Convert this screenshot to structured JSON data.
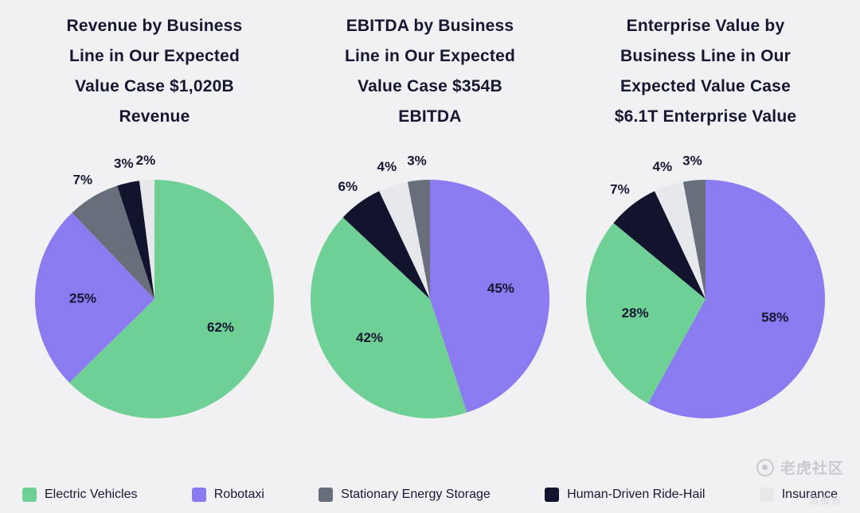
{
  "page": {
    "background": "#f1f1f4",
    "text_color": "#161731"
  },
  "colors": {
    "electric_vehicles": "#6fd096",
    "robotaxi": "#8a7bf0",
    "stationary_energy_storage": "#696e7b",
    "human_driven_ride_hail": "#12142e",
    "insurance": "#e7e8eb"
  },
  "chart_data": [
    {
      "type": "pie",
      "title": "Revenue by Business Line in Our Expected Value Case $1,020B Revenue",
      "title_lines": [
        "Revenue by Business",
        "Line in Our Expected",
        "Value Case $1,020B",
        "Revenue"
      ],
      "total_label": "$1,020B Revenue",
      "label_unit": "%",
      "slices": [
        {
          "label": "Electric Vehicles",
          "value": 62,
          "color": "#6fd096"
        },
        {
          "label": "Robotaxi",
          "value": 25,
          "color": "#8a7bf0"
        },
        {
          "label": "Stationary Energy Storage",
          "value": 7,
          "color": "#696e7b"
        },
        {
          "label": "Human-Driven Ride-Hail",
          "value": 3,
          "color": "#12142e"
        },
        {
          "label": "Insurance",
          "value": 2,
          "color": "#e7e8eb"
        }
      ]
    },
    {
      "type": "pie",
      "title": "EBITDA by Business Line in Our Expected Value Case $354B EBITDA",
      "title_lines": [
        "EBITDA by Business",
        "Line in Our Expected",
        "Value Case $354B",
        "EBITDA"
      ],
      "total_label": "$354B EBITDA",
      "label_unit": "%",
      "slices": [
        {
          "label": "Robotaxi",
          "value": 45,
          "color": "#8a7bf0"
        },
        {
          "label": "Electric Vehicles",
          "value": 42,
          "color": "#6fd096"
        },
        {
          "label": "Human-Driven Ride-Hail",
          "value": 6,
          "color": "#12142e"
        },
        {
          "label": "Insurance",
          "value": 4,
          "color": "#e7e8eb"
        },
        {
          "label": "Stationary Energy Storage",
          "value": 3,
          "color": "#696e7b"
        }
      ]
    },
    {
      "type": "pie",
      "title": "Enterprise Value by Business Line in Our Expected Value Case $6.1T Enterprise Value",
      "title_lines": [
        "Enterprise Value by",
        "Business Line in Our",
        "Expected Value Case",
        "$6.1T Enterprise Value"
      ],
      "total_label": "$6.1T Enterprise Value",
      "label_unit": "%",
      "slices": [
        {
          "label": "Robotaxi",
          "value": 58,
          "color": "#8a7bf0"
        },
        {
          "label": "Electric Vehicles",
          "value": 28,
          "color": "#6fd096"
        },
        {
          "label": "Human-Driven Ride-Hail",
          "value": 7,
          "color": "#12142e"
        },
        {
          "label": "Insurance",
          "value": 4,
          "color": "#e7e8eb"
        },
        {
          "label": "Stationary Energy Storage",
          "value": 3,
          "color": "#696e7b"
        }
      ]
    }
  ],
  "legend": {
    "items": [
      {
        "label": "Electric Vehicles",
        "color": "#6fd096"
      },
      {
        "label": "Robotaxi",
        "color": "#8a7bf0"
      },
      {
        "label": "Stationary Energy Storage",
        "color": "#696e7b"
      },
      {
        "label": "Human-Driven Ride-Hail",
        "color": "#12142e"
      },
      {
        "label": "Insurance",
        "color": "#e7e8eb"
      }
    ]
  },
  "watermark": {
    "brand": "老虎社区",
    "subtext": "活报告"
  }
}
